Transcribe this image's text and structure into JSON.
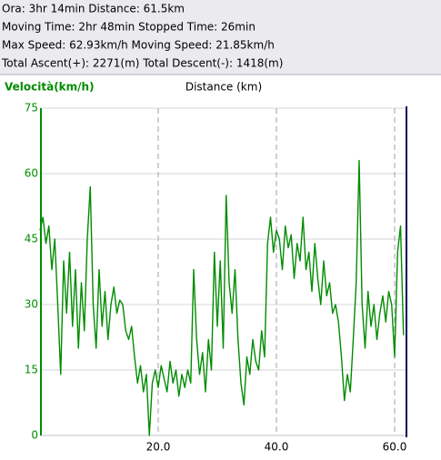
{
  "stats": [
    "Ora: 3hr 14min  Distance: 61.5km",
    "Moving Time: 2hr 48min  Stopped Time: 26min",
    "Max Speed: 62.93km/h  Moving Speed: 21.85km/h",
    "Total Ascent(+): 2271(m)  Total Descent(-): 1418(m)"
  ],
  "chart_data": {
    "type": "line",
    "ylabel": "Velocità(km/h)",
    "xlabel": "Distance (km)",
    "xlim": [
      0,
      62
    ],
    "ylim": [
      0,
      75
    ],
    "xticks": [
      {
        "value": 20,
        "label": "20.0"
      },
      {
        "value": 40,
        "label": "40.0"
      },
      {
        "value": 60,
        "label": "60.0"
      }
    ],
    "yticks": [
      0,
      15,
      30,
      45,
      60,
      75
    ],
    "grid": true,
    "x": [
      0,
      0.5,
      1,
      1.5,
      2,
      2.5,
      3,
      3.5,
      4,
      4.5,
      5,
      5.5,
      6,
      6.5,
      7,
      7.5,
      8,
      8.5,
      9,
      9.5,
      10,
      10.5,
      11,
      11.5,
      12,
      12.5,
      13,
      13.5,
      14,
      14.5,
      15,
      15.5,
      16,
      16.5,
      17,
      17.5,
      18,
      18.5,
      19,
      19.5,
      20,
      20.5,
      21,
      21.5,
      22,
      22.5,
      23,
      23.5,
      24,
      24.5,
      25,
      25.5,
      26,
      26.5,
      27,
      27.5,
      28,
      28.5,
      29,
      29.5,
      30,
      30.5,
      31,
      31.5,
      32,
      32.5,
      33,
      33.5,
      34,
      34.5,
      35,
      35.5,
      36,
      36.5,
      37,
      37.5,
      38,
      38.5,
      39,
      39.5,
      40,
      40.5,
      41,
      41.5,
      42,
      42.5,
      43,
      43.5,
      44,
      44.5,
      45,
      45.5,
      46,
      46.5,
      47,
      47.5,
      48,
      48.5,
      49,
      49.5,
      50,
      50.5,
      51,
      51.5,
      52,
      52.5,
      53,
      53.5,
      54,
      54.5,
      55,
      55.5,
      56,
      56.5,
      57,
      57.5,
      58,
      58.5,
      59,
      59.5,
      60,
      60.5,
      61,
      61.5
    ],
    "series": [
      {
        "color": "#008c00",
        "values": [
          47,
          50,
          44,
          48,
          38,
          45,
          30,
          14,
          40,
          28,
          42,
          25,
          38,
          20,
          35,
          24,
          45,
          57,
          30,
          20,
          38,
          25,
          33,
          22,
          30,
          34,
          28,
          31,
          30,
          24,
          22,
          25,
          18,
          12,
          16,
          10,
          14,
          0,
          12,
          15,
          11,
          16,
          13,
          10,
          17,
          12,
          15,
          9,
          14,
          11,
          15,
          12,
          38,
          22,
          14,
          19,
          10,
          22,
          15,
          42,
          25,
          40,
          20,
          55,
          35,
          28,
          38,
          22,
          12,
          7,
          18,
          14,
          22,
          17,
          15,
          24,
          18,
          44,
          50,
          42,
          47,
          45,
          38,
          48,
          43,
          46,
          36,
          44,
          40,
          50,
          38,
          42,
          33,
          44,
          36,
          30,
          40,
          32,
          35,
          28,
          30,
          26,
          18,
          8,
          14,
          10,
          22,
          35,
          63,
          30,
          20,
          33,
          25,
          30,
          22,
          28,
          32,
          26,
          33,
          30,
          18,
          42,
          48,
          23
        ]
      }
    ]
  }
}
